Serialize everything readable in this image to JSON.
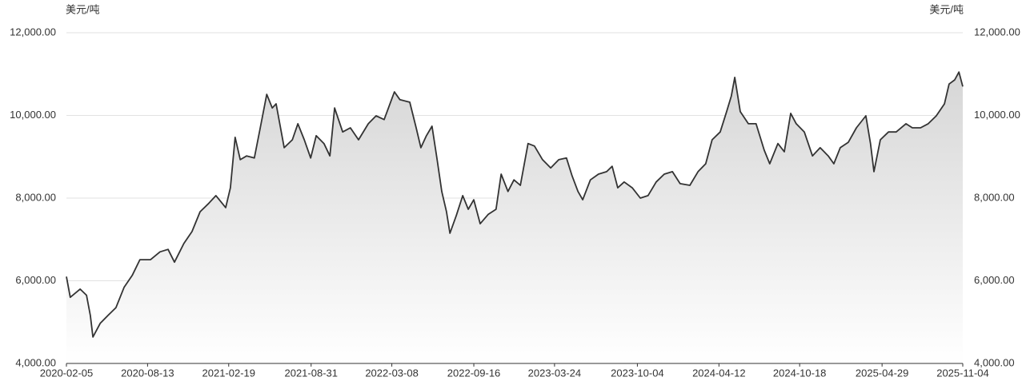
{
  "chart_data": {
    "type": "line",
    "y_label": "美元/吨",
    "y2_label": "美元/吨",
    "color": "#333333",
    "grid": true,
    "area": true,
    "x": [
      "2020-02-05",
      "2020-02-14",
      "2020-03-08",
      "2020-03-23",
      "2020-04-01",
      "2020-04-07",
      "2020-04-24",
      "2020-05-12",
      "2020-05-31",
      "2020-06-19",
      "2020-07-08",
      "2020-07-26",
      "2020-08-20",
      "2020-09-11",
      "2020-09-30",
      "2020-10-15",
      "2020-11-06",
      "2020-11-25",
      "2020-12-14",
      "2021-01-02",
      "2021-01-20",
      "2021-02-12",
      "2021-02-23",
      "2021-03-06",
      "2021-03-18",
      "2021-04-02",
      "2021-04-20",
      "2021-05-04",
      "2021-05-19",
      "2021-06-01",
      "2021-06-10",
      "2021-06-29",
      "2021-07-18",
      "2021-07-31",
      "2021-08-15",
      "2021-08-30",
      "2021-09-12",
      "2021-09-30",
      "2021-10-14",
      "2021-10-25",
      "2021-11-13",
      "2021-12-01",
      "2021-12-20",
      "2022-01-12",
      "2022-01-30",
      "2022-02-18",
      "2022-03-14",
      "2022-03-27",
      "2022-04-19",
      "2022-05-04",
      "2022-05-15",
      "2022-05-28",
      "2022-06-10",
      "2022-06-22",
      "2022-07-03",
      "2022-07-14",
      "2022-07-22",
      "2022-08-06",
      "2022-08-21",
      "2022-09-03",
      "2022-09-16",
      "2022-10-01",
      "2022-10-20",
      "2022-11-07",
      "2022-11-19",
      "2022-12-05",
      "2022-12-19",
      "2023-01-03",
      "2023-01-21",
      "2023-02-05",
      "2023-02-24",
      "2023-03-15",
      "2023-04-03",
      "2023-04-21",
      "2023-05-04",
      "2023-05-18",
      "2023-05-29",
      "2023-06-16",
      "2023-07-05",
      "2023-07-24",
      "2023-08-06",
      "2023-08-19",
      "2023-09-03",
      "2023-09-22",
      "2023-10-11",
      "2023-10-29",
      "2023-11-17",
      "2023-12-06",
      "2023-12-25",
      "2024-01-12",
      "2024-02-04",
      "2024-02-23",
      "2024-03-12",
      "2024-03-27",
      "2024-04-15",
      "2024-04-30",
      "2024-05-11",
      "2024-05-19",
      "2024-06-01",
      "2024-06-20",
      "2024-07-08",
      "2024-07-27",
      "2024-08-09",
      "2024-08-28",
      "2024-09-12",
      "2024-09-27",
      "2024-10-10",
      "2024-10-29",
      "2024-11-17",
      "2024-12-05",
      "2024-12-24",
      "2025-01-06",
      "2025-01-21",
      "2025-02-09",
      "2025-02-28",
      "2025-03-22",
      "2025-04-02",
      "2025-04-10",
      "2025-04-25",
      "2025-05-14",
      "2025-06-01",
      "2025-06-24",
      "2025-07-09",
      "2025-07-28",
      "2025-08-15",
      "2025-09-03",
      "2025-09-22",
      "2025-10-03",
      "2025-10-16",
      "2025-10-26",
      "2025-11-04"
    ],
    "series": [
      {
        "values": [
          6100,
          5600,
          5800,
          5650,
          5160,
          4640,
          4970,
          5160,
          5350,
          5840,
          6130,
          6510,
          6510,
          6700,
          6760,
          6450,
          6900,
          7190,
          7670,
          7860,
          8060,
          7770,
          8250,
          9470,
          8930,
          9020,
          8970,
          9700,
          10510,
          10180,
          10280,
          9220,
          9410,
          9800,
          9410,
          8970,
          9510,
          9320,
          9020,
          10180,
          9600,
          9700,
          9410,
          9800,
          9990,
          9900,
          10570,
          10380,
          10320,
          9700,
          9220,
          9510,
          9740,
          8930,
          8160,
          7670,
          7150,
          7580,
          8060,
          7730,
          7960,
          7380,
          7610,
          7730,
          8580,
          8160,
          8440,
          8310,
          9320,
          9260,
          8930,
          8730,
          8930,
          8970,
          8540,
          8160,
          7960,
          8440,
          8580,
          8640,
          8770,
          8250,
          8390,
          8250,
          8000,
          8060,
          8390,
          8580,
          8640,
          8350,
          8310,
          8640,
          8830,
          9410,
          9600,
          10090,
          10470,
          10920,
          10090,
          9800,
          9800,
          9160,
          8830,
          9320,
          9120,
          10050,
          9800,
          9600,
          9020,
          9220,
          9020,
          8830,
          9220,
          9350,
          9700,
          9990,
          9320,
          8640,
          9410,
          9600,
          9600,
          9800,
          9700,
          9700,
          9800,
          9990,
          10280,
          10760,
          10860,
          11050,
          10700
        ]
      }
    ],
    "xlim": [
      "2020-02-05",
      "2025-11-04"
    ],
    "xticks": [
      "2020-02-05",
      "2020-08-13",
      "2021-02-19",
      "2021-08-31",
      "2022-03-08",
      "2022-09-16",
      "2023-03-24",
      "2023-10-04",
      "2024-04-12",
      "2024-10-18",
      "2025-04-29",
      "2025-11-04"
    ],
    "ylim": [
      4000,
      12000
    ],
    "yticks": [
      {
        "value": 4000,
        "label": "4,000.00"
      },
      {
        "value": 6000,
        "label": "6,000.00"
      },
      {
        "value": 8000,
        "label": "8,000.00"
      },
      {
        "value": 10000,
        "label": "10,000.00"
      },
      {
        "value": 12000,
        "label": "12,000.00"
      }
    ],
    "y2lim": [
      4000,
      12000
    ],
    "y2ticks": [
      {
        "value": 4000,
        "label": "4,000.00"
      },
      {
        "value": 6000,
        "label": "6,000.00"
      },
      {
        "value": 8000,
        "label": "8,000.00"
      },
      {
        "value": 10000,
        "label": "10,000.00"
      },
      {
        "value": 12000,
        "label": "12,000.00"
      }
    ]
  }
}
